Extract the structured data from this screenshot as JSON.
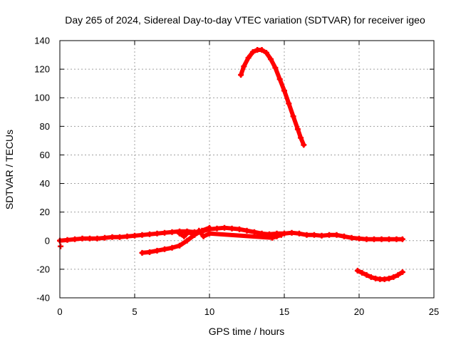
{
  "chart_data": {
    "type": "scatter",
    "title": "Day 265 of 2024, Sidereal Day-to-day VTEC variation (SDTVAR) for receiver igeo",
    "xlabel": "GPS time / hours",
    "ylabel": "SDTVAR / TECUs",
    "xlim": [
      0,
      25
    ],
    "ylim": [
      -40,
      140
    ],
    "xticks": [
      0,
      5,
      10,
      15,
      20,
      25
    ],
    "yticks": [
      -40,
      -20,
      0,
      20,
      40,
      60,
      80,
      100,
      120,
      140
    ],
    "grid": true,
    "legend": "none",
    "series_color": "#ff0000",
    "series": [
      {
        "name": "main-trace",
        "x": [
          0,
          0.5,
          1,
          1.5,
          2,
          2.5,
          3,
          3.5,
          4,
          4.5,
          5,
          5.5,
          6,
          6.5,
          7,
          7.5,
          8,
          8.5,
          9,
          9.5,
          10,
          10.5,
          11,
          11.5,
          12,
          12.5,
          13,
          13.5,
          14,
          14.5,
          15,
          15.5,
          16,
          16.5,
          17,
          17.5,
          18,
          18.5,
          19,
          19.5,
          20,
          20.5,
          21,
          21.5,
          22,
          22.5,
          22.9
        ],
        "y": [
          0,
          0.5,
          1,
          1.5,
          1.5,
          1.5,
          2,
          2.5,
          2.5,
          3,
          3.5,
          4,
          4.5,
          5,
          5.5,
          6,
          6.5,
          6.5,
          6,
          6.5,
          8,
          8.5,
          9,
          8.5,
          8,
          7,
          6,
          5,
          4.5,
          5,
          5,
          5.5,
          5,
          4,
          4,
          3.5,
          4,
          4,
          3,
          2,
          1.5,
          1,
          1,
          1,
          1,
          1,
          1
        ]
      },
      {
        "name": "rising-arc",
        "x": [
          5.5,
          6,
          6.5,
          7,
          7.5,
          8,
          8.5,
          9,
          9.5,
          10
        ],
        "y": [
          -8.5,
          -8,
          -7,
          -6,
          -5,
          -3.5,
          0,
          4,
          7,
          9
        ]
      },
      {
        "name": "mid-noise",
        "x": [
          8,
          8.3,
          8.6,
          9,
          9.3,
          9.6,
          10,
          14.2,
          14.5,
          14.8
        ],
        "y": [
          5,
          3,
          6,
          4,
          7,
          3,
          5,
          2,
          3,
          4
        ]
      },
      {
        "name": "high-arc",
        "x": [
          12.1,
          12.3,
          12.6,
          12.9,
          13.2,
          13.5,
          13.8,
          14.1,
          14.4,
          14.7,
          15.0,
          15.3,
          15.6,
          15.9,
          16.1,
          16.3
        ],
        "y": [
          116,
          122,
          128,
          132,
          133.5,
          133.5,
          131.5,
          127,
          121,
          113,
          105,
          96,
          87,
          78,
          72,
          67
        ]
      },
      {
        "name": "low-dip",
        "x": [
          19.9,
          20.2,
          20.5,
          20.8,
          21.1,
          21.4,
          21.7,
          22.0,
          22.3,
          22.6,
          22.9
        ],
        "y": [
          -21,
          -22.5,
          -24,
          -25.5,
          -26.5,
          -27,
          -27,
          -26.5,
          -25.5,
          -24,
          -22
        ]
      },
      {
        "name": "outlier",
        "x": [
          0.05
        ],
        "y": [
          -4
        ]
      }
    ]
  }
}
